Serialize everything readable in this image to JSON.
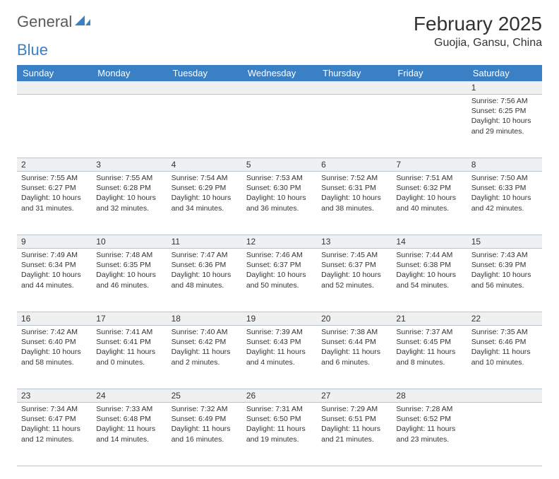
{
  "logo": {
    "word1": "General",
    "word2": "Blue"
  },
  "title": "February 2025",
  "location": "Guojia, Gansu, China",
  "colors": {
    "header_bg": "#3b7fc4",
    "header_text": "#ffffff",
    "daynum_bg": "#eef0f2",
    "border": "#b8c4d0",
    "page_bg": "#ffffff",
    "text": "#333333",
    "logo_gray": "#5a5a5a",
    "logo_blue": "#3b7fc4"
  },
  "fonts": {
    "title_size": 28,
    "location_size": 16,
    "header_size": 13,
    "cell_size": 10.5
  },
  "weekdays": [
    "Sunday",
    "Monday",
    "Tuesday",
    "Wednesday",
    "Thursday",
    "Friday",
    "Saturday"
  ],
  "weeks": [
    [
      null,
      null,
      null,
      null,
      null,
      null,
      {
        "n": "1",
        "sunrise": "Sunrise: 7:56 AM",
        "sunset": "Sunset: 6:25 PM",
        "daylight": "Daylight: 10 hours and 29 minutes."
      }
    ],
    [
      {
        "n": "2",
        "sunrise": "Sunrise: 7:55 AM",
        "sunset": "Sunset: 6:27 PM",
        "daylight": "Daylight: 10 hours and 31 minutes."
      },
      {
        "n": "3",
        "sunrise": "Sunrise: 7:55 AM",
        "sunset": "Sunset: 6:28 PM",
        "daylight": "Daylight: 10 hours and 32 minutes."
      },
      {
        "n": "4",
        "sunrise": "Sunrise: 7:54 AM",
        "sunset": "Sunset: 6:29 PM",
        "daylight": "Daylight: 10 hours and 34 minutes."
      },
      {
        "n": "5",
        "sunrise": "Sunrise: 7:53 AM",
        "sunset": "Sunset: 6:30 PM",
        "daylight": "Daylight: 10 hours and 36 minutes."
      },
      {
        "n": "6",
        "sunrise": "Sunrise: 7:52 AM",
        "sunset": "Sunset: 6:31 PM",
        "daylight": "Daylight: 10 hours and 38 minutes."
      },
      {
        "n": "7",
        "sunrise": "Sunrise: 7:51 AM",
        "sunset": "Sunset: 6:32 PM",
        "daylight": "Daylight: 10 hours and 40 minutes."
      },
      {
        "n": "8",
        "sunrise": "Sunrise: 7:50 AM",
        "sunset": "Sunset: 6:33 PM",
        "daylight": "Daylight: 10 hours and 42 minutes."
      }
    ],
    [
      {
        "n": "9",
        "sunrise": "Sunrise: 7:49 AM",
        "sunset": "Sunset: 6:34 PM",
        "daylight": "Daylight: 10 hours and 44 minutes."
      },
      {
        "n": "10",
        "sunrise": "Sunrise: 7:48 AM",
        "sunset": "Sunset: 6:35 PM",
        "daylight": "Daylight: 10 hours and 46 minutes."
      },
      {
        "n": "11",
        "sunrise": "Sunrise: 7:47 AM",
        "sunset": "Sunset: 6:36 PM",
        "daylight": "Daylight: 10 hours and 48 minutes."
      },
      {
        "n": "12",
        "sunrise": "Sunrise: 7:46 AM",
        "sunset": "Sunset: 6:37 PM",
        "daylight": "Daylight: 10 hours and 50 minutes."
      },
      {
        "n": "13",
        "sunrise": "Sunrise: 7:45 AM",
        "sunset": "Sunset: 6:37 PM",
        "daylight": "Daylight: 10 hours and 52 minutes."
      },
      {
        "n": "14",
        "sunrise": "Sunrise: 7:44 AM",
        "sunset": "Sunset: 6:38 PM",
        "daylight": "Daylight: 10 hours and 54 minutes."
      },
      {
        "n": "15",
        "sunrise": "Sunrise: 7:43 AM",
        "sunset": "Sunset: 6:39 PM",
        "daylight": "Daylight: 10 hours and 56 minutes."
      }
    ],
    [
      {
        "n": "16",
        "sunrise": "Sunrise: 7:42 AM",
        "sunset": "Sunset: 6:40 PM",
        "daylight": "Daylight: 10 hours and 58 minutes."
      },
      {
        "n": "17",
        "sunrise": "Sunrise: 7:41 AM",
        "sunset": "Sunset: 6:41 PM",
        "daylight": "Daylight: 11 hours and 0 minutes."
      },
      {
        "n": "18",
        "sunrise": "Sunrise: 7:40 AM",
        "sunset": "Sunset: 6:42 PM",
        "daylight": "Daylight: 11 hours and 2 minutes."
      },
      {
        "n": "19",
        "sunrise": "Sunrise: 7:39 AM",
        "sunset": "Sunset: 6:43 PM",
        "daylight": "Daylight: 11 hours and 4 minutes."
      },
      {
        "n": "20",
        "sunrise": "Sunrise: 7:38 AM",
        "sunset": "Sunset: 6:44 PM",
        "daylight": "Daylight: 11 hours and 6 minutes."
      },
      {
        "n": "21",
        "sunrise": "Sunrise: 7:37 AM",
        "sunset": "Sunset: 6:45 PM",
        "daylight": "Daylight: 11 hours and 8 minutes."
      },
      {
        "n": "22",
        "sunrise": "Sunrise: 7:35 AM",
        "sunset": "Sunset: 6:46 PM",
        "daylight": "Daylight: 11 hours and 10 minutes."
      }
    ],
    [
      {
        "n": "23",
        "sunrise": "Sunrise: 7:34 AM",
        "sunset": "Sunset: 6:47 PM",
        "daylight": "Daylight: 11 hours and 12 minutes."
      },
      {
        "n": "24",
        "sunrise": "Sunrise: 7:33 AM",
        "sunset": "Sunset: 6:48 PM",
        "daylight": "Daylight: 11 hours and 14 minutes."
      },
      {
        "n": "25",
        "sunrise": "Sunrise: 7:32 AM",
        "sunset": "Sunset: 6:49 PM",
        "daylight": "Daylight: 11 hours and 16 minutes."
      },
      {
        "n": "26",
        "sunrise": "Sunrise: 7:31 AM",
        "sunset": "Sunset: 6:50 PM",
        "daylight": "Daylight: 11 hours and 19 minutes."
      },
      {
        "n": "27",
        "sunrise": "Sunrise: 7:29 AM",
        "sunset": "Sunset: 6:51 PM",
        "daylight": "Daylight: 11 hours and 21 minutes."
      },
      {
        "n": "28",
        "sunrise": "Sunrise: 7:28 AM",
        "sunset": "Sunset: 6:52 PM",
        "daylight": "Daylight: 11 hours and 23 minutes."
      },
      null
    ]
  ]
}
